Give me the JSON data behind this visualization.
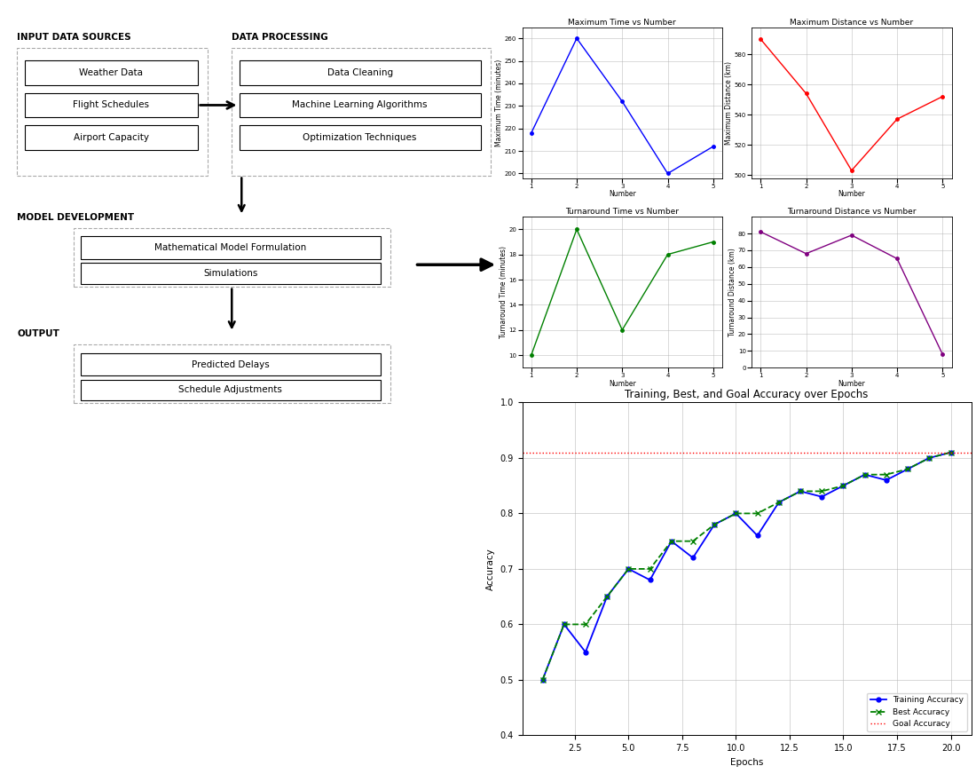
{
  "flowchart": {
    "input_label": "INPUT DATA SOURCES",
    "processing_label": "DATA PROCESSING",
    "model_label": "MODEL DEVELOPMENT",
    "output_label": "OUTPUT",
    "input_items": [
      "Weather Data",
      "Flight Schedules",
      "Airport Capacity"
    ],
    "processing_items": [
      "Data Cleaning",
      "Machine Learning Algorithms",
      "Optimization Techniques"
    ],
    "model_items": [
      "Mathematical Model Formulation",
      "Simulations"
    ],
    "output_items": [
      "Predicted Delays",
      "Schedule Adjustments"
    ]
  },
  "max_time": {
    "title": "Maximum Time vs Number",
    "xlabel": "Number",
    "ylabel": "Maximum Time (minutes)",
    "x": [
      1,
      2,
      3,
      4,
      5
    ],
    "y": [
      218,
      260,
      232,
      200,
      212
    ],
    "color": "blue",
    "ylim": [
      198,
      265
    ],
    "yticks": [
      200,
      210,
      220,
      230,
      240,
      250,
      260
    ]
  },
  "max_dist": {
    "title": "Maximum Distance vs Number",
    "xlabel": "Number",
    "ylabel": "Maximum Distance (km)",
    "x": [
      1,
      2,
      3,
      4,
      5
    ],
    "y": [
      590,
      554,
      503,
      537,
      552
    ],
    "color": "red",
    "ylim": [
      498,
      598
    ],
    "yticks": [
      500,
      520,
      540,
      560,
      580
    ]
  },
  "turn_time": {
    "title": "Turnaround Time vs Number",
    "xlabel": "Number",
    "ylabel": "Turnaround Time (minutes)",
    "x": [
      1,
      2,
      3,
      4,
      5
    ],
    "y": [
      10,
      20,
      12,
      18,
      19
    ],
    "color": "green",
    "ylim": [
      9,
      21
    ],
    "yticks": [
      10,
      12,
      14,
      16,
      18,
      20
    ]
  },
  "turn_dist": {
    "title": "Turnaround Distance vs Number",
    "xlabel": "Number",
    "ylabel": "Turnaround Distance (km)",
    "x": [
      1,
      2,
      3,
      4,
      5
    ],
    "y": [
      81,
      68,
      79,
      65,
      8
    ],
    "color": "purple",
    "ylim": [
      0,
      90
    ],
    "yticks": [
      0,
      10,
      20,
      30,
      40,
      50,
      60,
      70,
      80
    ]
  },
  "accuracy": {
    "title": "Training, Best, and Goal Accuracy over Epochs",
    "xlabel": "Epochs",
    "ylabel": "Accuracy",
    "epochs": [
      1,
      2,
      3,
      4,
      5,
      6,
      7,
      8,
      9,
      10,
      11,
      12,
      13,
      14,
      15,
      16,
      17,
      18,
      19,
      20
    ],
    "training": [
      0.5,
      0.6,
      0.55,
      0.65,
      0.7,
      0.68,
      0.75,
      0.72,
      0.78,
      0.8,
      0.76,
      0.82,
      0.84,
      0.83,
      0.85,
      0.87,
      0.86,
      0.88,
      0.9,
      0.91
    ],
    "best": [
      0.5,
      0.6,
      0.6,
      0.65,
      0.7,
      0.7,
      0.75,
      0.75,
      0.78,
      0.8,
      0.8,
      0.82,
      0.84,
      0.84,
      0.85,
      0.87,
      0.87,
      0.88,
      0.9,
      0.91
    ],
    "goal": 0.91,
    "ylim": [
      0.4,
      1.0
    ],
    "yticks": [
      0.4,
      0.5,
      0.6,
      0.7,
      0.8,
      0.9,
      1.0
    ],
    "xticks": [
      2.5,
      5.0,
      7.5,
      10.0,
      12.5,
      15.0,
      17.5,
      20.0
    ],
    "training_color": "blue",
    "best_color": "green",
    "goal_color": "red"
  },
  "bg_color": "#ffffff"
}
